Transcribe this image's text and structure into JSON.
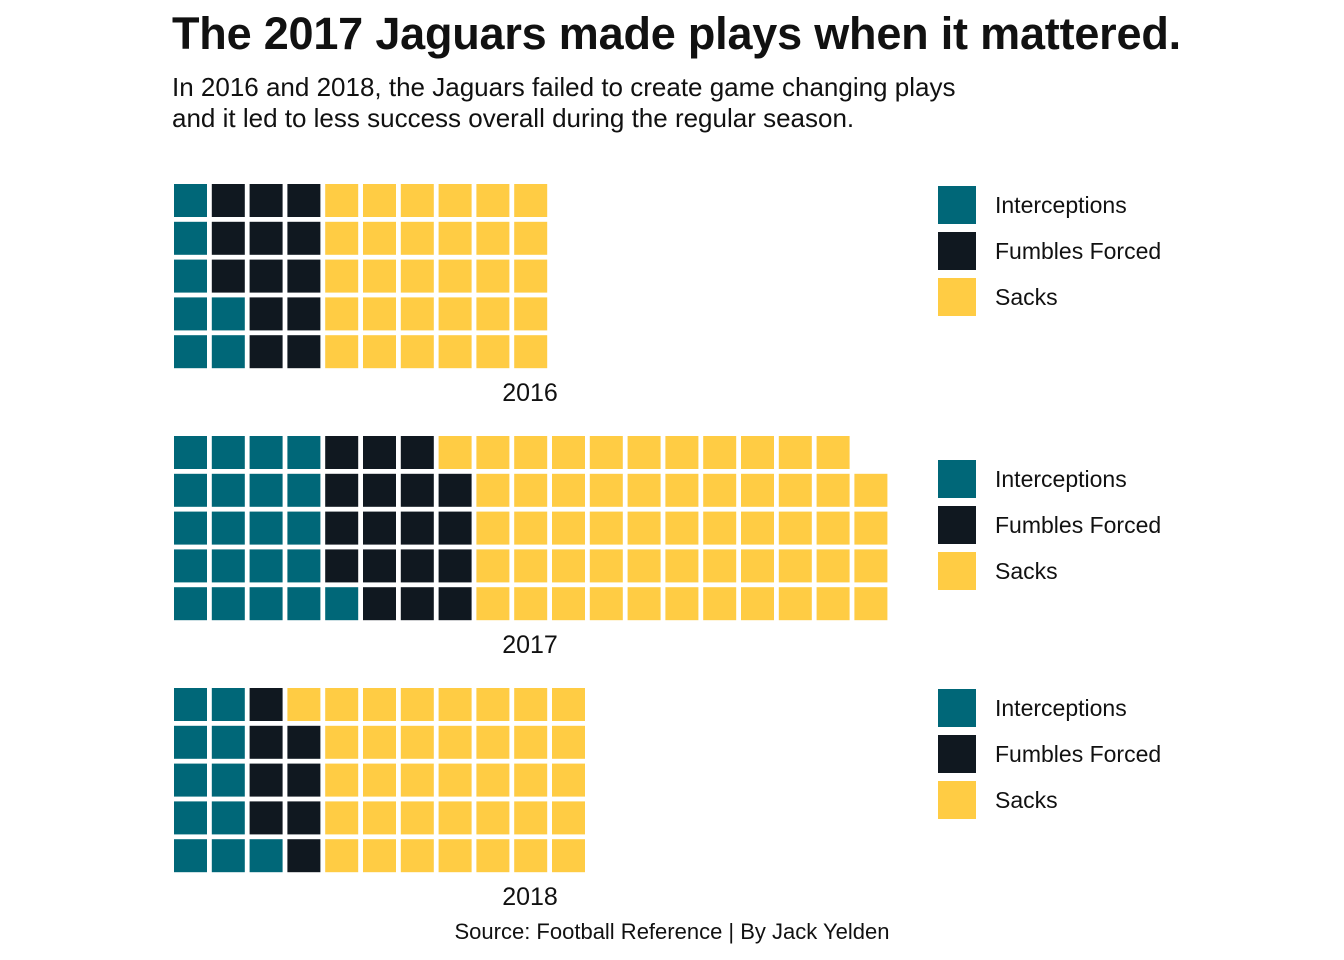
{
  "title": "The 2017 Jaguars made plays when it mattered.",
  "subtitle": {
    "line1": "In 2016 and 2018, the Jaguars failed to create game changing plays",
    "line2": "and it led to less success overall during the regular season."
  },
  "caption": "Source: Football Reference | By Jack Yelden",
  "colors": {
    "interceptions": "#006778",
    "fumbles_forced": "#101820",
    "sacks": "#FFCC44"
  },
  "legend": [
    {
      "key": "interceptions",
      "label": "Interceptions"
    },
    {
      "key": "fumbles_forced",
      "label": "Fumbles Forced"
    },
    {
      "key": "sacks",
      "label": "Sacks"
    }
  ],
  "chart_data": [
    {
      "type": "waffle",
      "xlabel": "2016",
      "rows": 5,
      "series": [
        {
          "name": "Interceptions",
          "values": [
            7
          ]
        },
        {
          "name": "Fumbles Forced",
          "values": [
            13
          ]
        },
        {
          "name": "Sacks",
          "values": [
            30
          ]
        }
      ]
    },
    {
      "type": "waffle",
      "xlabel": "2017",
      "rows": 5,
      "series": [
        {
          "name": "Interceptions",
          "values": [
            21
          ]
        },
        {
          "name": "Fumbles Forced",
          "values": [
            18
          ]
        },
        {
          "name": "Sacks",
          "values": [
            55
          ]
        }
      ]
    },
    {
      "type": "waffle",
      "xlabel": "2018",
      "rows": 5,
      "series": [
        {
          "name": "Interceptions",
          "values": [
            11
          ]
        },
        {
          "name": "Fumbles Forced",
          "values": [
            8
          ]
        },
        {
          "name": "Sacks",
          "values": [
            36
          ]
        }
      ]
    }
  ]
}
